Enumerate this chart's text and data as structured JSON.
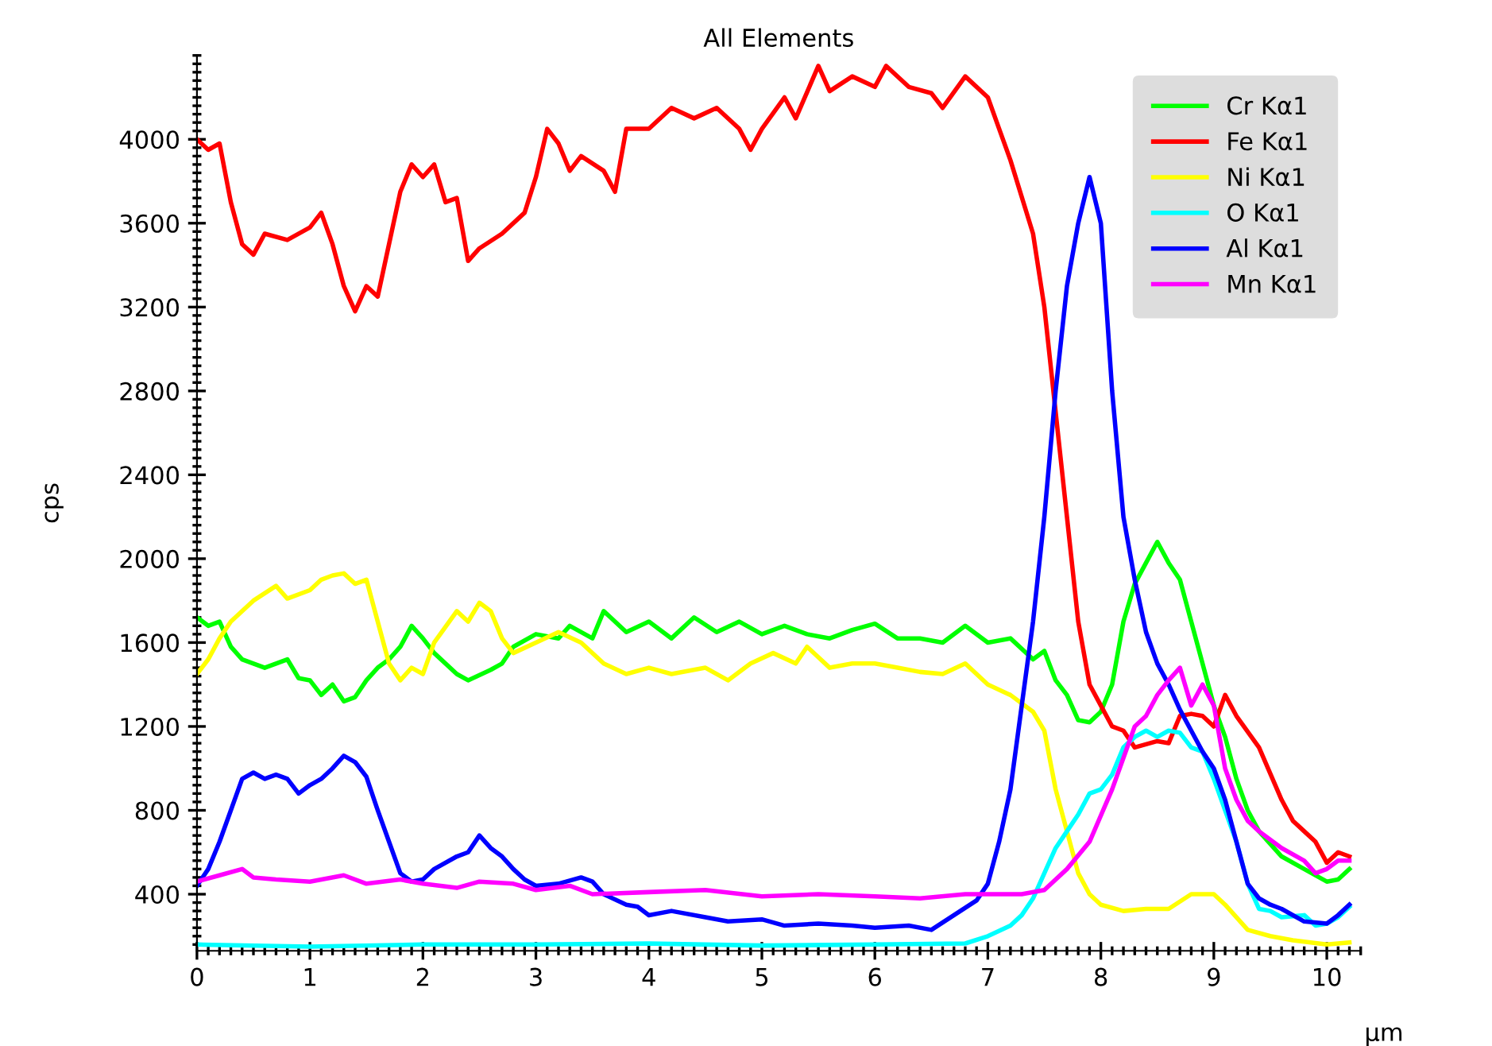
{
  "chart_data": {
    "type": "line",
    "title": "All Elements",
    "xlabel": "µm",
    "ylabel": "cps",
    "xlim": [
      0,
      10.3
    ],
    "xticks": [
      0,
      1,
      2,
      3,
      4,
      5,
      6,
      7,
      8,
      9,
      10
    ],
    "ylim": [
      130,
      4400
    ],
    "yticks": [
      400,
      800,
      1200,
      1600,
      2000,
      2400,
      2800,
      3200,
      3600,
      4000
    ],
    "legend": "top right",
    "grid": false,
    "marker": "none",
    "line_style": "solid",
    "series": [
      {
        "name": "Cr Kα1",
        "color": "#00ff00",
        "x": [
          0,
          0.1,
          0.2,
          0.3,
          0.4,
          0.6,
          0.8,
          0.9,
          1.0,
          1.1,
          1.2,
          1.3,
          1.4,
          1.5,
          1.6,
          1.7,
          1.8,
          1.9,
          2.0,
          2.1,
          2.3,
          2.4,
          2.6,
          2.7,
          2.8,
          3.0,
          3.2,
          3.3,
          3.5,
          3.6,
          3.8,
          4.0,
          4.2,
          4.4,
          4.6,
          4.8,
          5.0,
          5.2,
          5.4,
          5.6,
          5.8,
          6.0,
          6.2,
          6.4,
          6.6,
          6.8,
          7.0,
          7.2,
          7.4,
          7.5,
          7.6,
          7.7,
          7.8,
          7.9,
          8.0,
          8.1,
          8.2,
          8.3,
          8.4,
          8.5,
          8.6,
          8.7,
          8.8,
          8.9,
          9.0,
          9.1,
          9.2,
          9.3,
          9.4,
          9.6,
          9.8,
          10.0,
          10.1,
          10.2
        ],
        "values": [
          1720,
          1680,
          1700,
          1580,
          1520,
          1480,
          1520,
          1430,
          1420,
          1350,
          1400,
          1320,
          1340,
          1420,
          1480,
          1520,
          1580,
          1680,
          1620,
          1550,
          1450,
          1420,
          1470,
          1500,
          1580,
          1640,
          1620,
          1680,
          1620,
          1750,
          1650,
          1700,
          1620,
          1720,
          1650,
          1700,
          1640,
          1680,
          1640,
          1620,
          1660,
          1690,
          1620,
          1620,
          1600,
          1680,
          1600,
          1620,
          1520,
          1560,
          1420,
          1350,
          1230,
          1220,
          1270,
          1400,
          1700,
          1880,
          1980,
          2080,
          1980,
          1900,
          1700,
          1500,
          1300,
          1150,
          950,
          800,
          700,
          580,
          520,
          460,
          470,
          520
        ]
      },
      {
        "name": "Fe Kα1",
        "color": "#ff0000",
        "x": [
          0,
          0.1,
          0.2,
          0.3,
          0.4,
          0.5,
          0.6,
          0.8,
          1.0,
          1.1,
          1.2,
          1.3,
          1.4,
          1.5,
          1.6,
          1.7,
          1.8,
          1.9,
          2.0,
          2.1,
          2.2,
          2.3,
          2.4,
          2.5,
          2.7,
          2.9,
          3.0,
          3.1,
          3.2,
          3.3,
          3.4,
          3.6,
          3.7,
          3.8,
          4.0,
          4.2,
          4.4,
          4.6,
          4.8,
          4.9,
          5.0,
          5.2,
          5.3,
          5.5,
          5.6,
          5.8,
          6.0,
          6.1,
          6.3,
          6.5,
          6.6,
          6.8,
          7.0,
          7.1,
          7.2,
          7.4,
          7.5,
          7.6,
          7.7,
          7.8,
          7.9,
          8.0,
          8.1,
          8.2,
          8.3,
          8.5,
          8.6,
          8.7,
          8.8,
          8.9,
          9.0,
          9.1,
          9.2,
          9.4,
          9.6,
          9.7,
          9.8,
          9.9,
          10.0,
          10.1,
          10.2
        ],
        "values": [
          4000,
          3950,
          3980,
          3700,
          3500,
          3450,
          3550,
          3520,
          3580,
          3650,
          3500,
          3300,
          3180,
          3300,
          3250,
          3500,
          3750,
          3880,
          3820,
          3880,
          3700,
          3720,
          3420,
          3480,
          3550,
          3650,
          3820,
          4050,
          3980,
          3850,
          3920,
          3850,
          3750,
          4050,
          4050,
          4150,
          4100,
          4150,
          4050,
          3950,
          4050,
          4200,
          4100,
          4350,
          4230,
          4300,
          4250,
          4350,
          4250,
          4220,
          4150,
          4300,
          4200,
          4050,
          3900,
          3550,
          3200,
          2700,
          2200,
          1700,
          1400,
          1300,
          1200,
          1180,
          1100,
          1130,
          1120,
          1250,
          1260,
          1250,
          1200,
          1350,
          1250,
          1100,
          850,
          750,
          700,
          650,
          550,
          600,
          580
        ]
      },
      {
        "name": "Ni Kα1",
        "color": "#ffff00",
        "x": [
          0,
          0.1,
          0.2,
          0.3,
          0.5,
          0.7,
          0.8,
          1.0,
          1.1,
          1.2,
          1.3,
          1.4,
          1.5,
          1.6,
          1.7,
          1.8,
          1.9,
          2.0,
          2.1,
          2.3,
          2.4,
          2.5,
          2.6,
          2.7,
          2.8,
          3.0,
          3.2,
          3.4,
          3.6,
          3.8,
          4.0,
          4.2,
          4.5,
          4.7,
          4.9,
          5.1,
          5.3,
          5.4,
          5.6,
          5.8,
          6.0,
          6.2,
          6.4,
          6.6,
          6.8,
          7.0,
          7.2,
          7.4,
          7.5,
          7.6,
          7.7,
          7.8,
          7.9,
          8.0,
          8.2,
          8.4,
          8.6,
          8.8,
          9.0,
          9.1,
          9.3,
          9.5,
          9.7,
          10.0,
          10.2
        ],
        "values": [
          1450,
          1520,
          1620,
          1700,
          1800,
          1870,
          1810,
          1850,
          1900,
          1920,
          1930,
          1880,
          1900,
          1700,
          1500,
          1420,
          1480,
          1450,
          1600,
          1750,
          1700,
          1790,
          1750,
          1620,
          1550,
          1600,
          1650,
          1600,
          1500,
          1450,
          1480,
          1450,
          1480,
          1420,
          1500,
          1550,
          1500,
          1580,
          1480,
          1500,
          1500,
          1480,
          1460,
          1450,
          1500,
          1400,
          1350,
          1270,
          1180,
          900,
          700,
          500,
          400,
          350,
          320,
          330,
          330,
          400,
          400,
          350,
          230,
          200,
          180,
          160,
          170
        ]
      },
      {
        "name": "O Kα1",
        "color": "#00ffff",
        "x": [
          0,
          1,
          2,
          3,
          4,
          5,
          6,
          6.8,
          7.0,
          7.2,
          7.3,
          7.4,
          7.5,
          7.6,
          7.7,
          7.8,
          7.9,
          8.0,
          8.1,
          8.2,
          8.3,
          8.4,
          8.5,
          8.6,
          8.7,
          8.8,
          8.9,
          9.0,
          9.1,
          9.2,
          9.3,
          9.4,
          9.5,
          9.6,
          9.8,
          9.9,
          10.0,
          10.1,
          10.2
        ],
        "values": [
          160,
          150,
          160,
          160,
          165,
          155,
          160,
          165,
          200,
          250,
          300,
          380,
          500,
          620,
          700,
          780,
          880,
          900,
          970,
          1100,
          1150,
          1180,
          1150,
          1180,
          1170,
          1100,
          1080,
          950,
          800,
          650,
          450,
          330,
          320,
          290,
          300,
          250,
          260,
          290,
          340
        ]
      },
      {
        "name": "Al Kα1",
        "color": "#0000ff",
        "x": [
          0,
          0.1,
          0.2,
          0.3,
          0.4,
          0.5,
          0.6,
          0.7,
          0.8,
          0.9,
          1.0,
          1.1,
          1.2,
          1.3,
          1.4,
          1.5,
          1.6,
          1.7,
          1.8,
          1.9,
          2.0,
          2.1,
          2.3,
          2.4,
          2.5,
          2.6,
          2.7,
          2.8,
          2.9,
          3.0,
          3.2,
          3.4,
          3.5,
          3.6,
          3.8,
          3.9,
          4.0,
          4.2,
          4.5,
          4.7,
          5.0,
          5.2,
          5.5,
          5.8,
          6.0,
          6.3,
          6.5,
          6.7,
          6.9,
          7.0,
          7.1,
          7.2,
          7.3,
          7.4,
          7.5,
          7.6,
          7.7,
          7.8,
          7.9,
          8.0,
          8.1,
          8.2,
          8.3,
          8.4,
          8.5,
          8.6,
          8.7,
          8.8,
          8.9,
          9.0,
          9.1,
          9.2,
          9.3,
          9.4,
          9.5,
          9.6,
          9.8,
          10.0,
          10.1,
          10.2
        ],
        "values": [
          440,
          520,
          650,
          800,
          950,
          980,
          950,
          970,
          950,
          880,
          920,
          950,
          1000,
          1060,
          1030,
          960,
          800,
          650,
          500,
          460,
          470,
          520,
          580,
          600,
          680,
          620,
          580,
          520,
          470,
          440,
          450,
          480,
          460,
          400,
          350,
          340,
          300,
          320,
          290,
          270,
          280,
          250,
          260,
          250,
          240,
          250,
          230,
          300,
          370,
          450,
          650,
          900,
          1300,
          1700,
          2200,
          2800,
          3300,
          3600,
          3820,
          3600,
          2800,
          2200,
          1900,
          1650,
          1500,
          1400,
          1280,
          1180,
          1080,
          1000,
          850,
          650,
          450,
          380,
          350,
          330,
          270,
          260,
          300,
          350
        ]
      },
      {
        "name": "Mn Kα1",
        "color": "#ff00ff",
        "x": [
          0,
          0.2,
          0.4,
          0.5,
          0.7,
          1.0,
          1.3,
          1.5,
          1.8,
          2.0,
          2.3,
          2.5,
          2.8,
          3.0,
          3.3,
          3.5,
          4.0,
          4.5,
          5.0,
          5.5,
          6.0,
          6.4,
          6.8,
          7.0,
          7.3,
          7.5,
          7.7,
          7.9,
          8.1,
          8.2,
          8.3,
          8.4,
          8.5,
          8.6,
          8.7,
          8.8,
          8.9,
          9.0,
          9.1,
          9.2,
          9.3,
          9.4,
          9.6,
          9.8,
          9.9,
          10.0,
          10.1,
          10.2
        ],
        "values": [
          460,
          490,
          520,
          480,
          470,
          460,
          490,
          450,
          470,
          450,
          430,
          460,
          450,
          420,
          440,
          400,
          410,
          420,
          390,
          400,
          390,
          380,
          400,
          400,
          400,
          420,
          520,
          650,
          900,
          1050,
          1200,
          1250,
          1350,
          1420,
          1480,
          1300,
          1400,
          1300,
          1000,
          850,
          750,
          700,
          620,
          560,
          500,
          520,
          560,
          560
        ]
      }
    ]
  }
}
